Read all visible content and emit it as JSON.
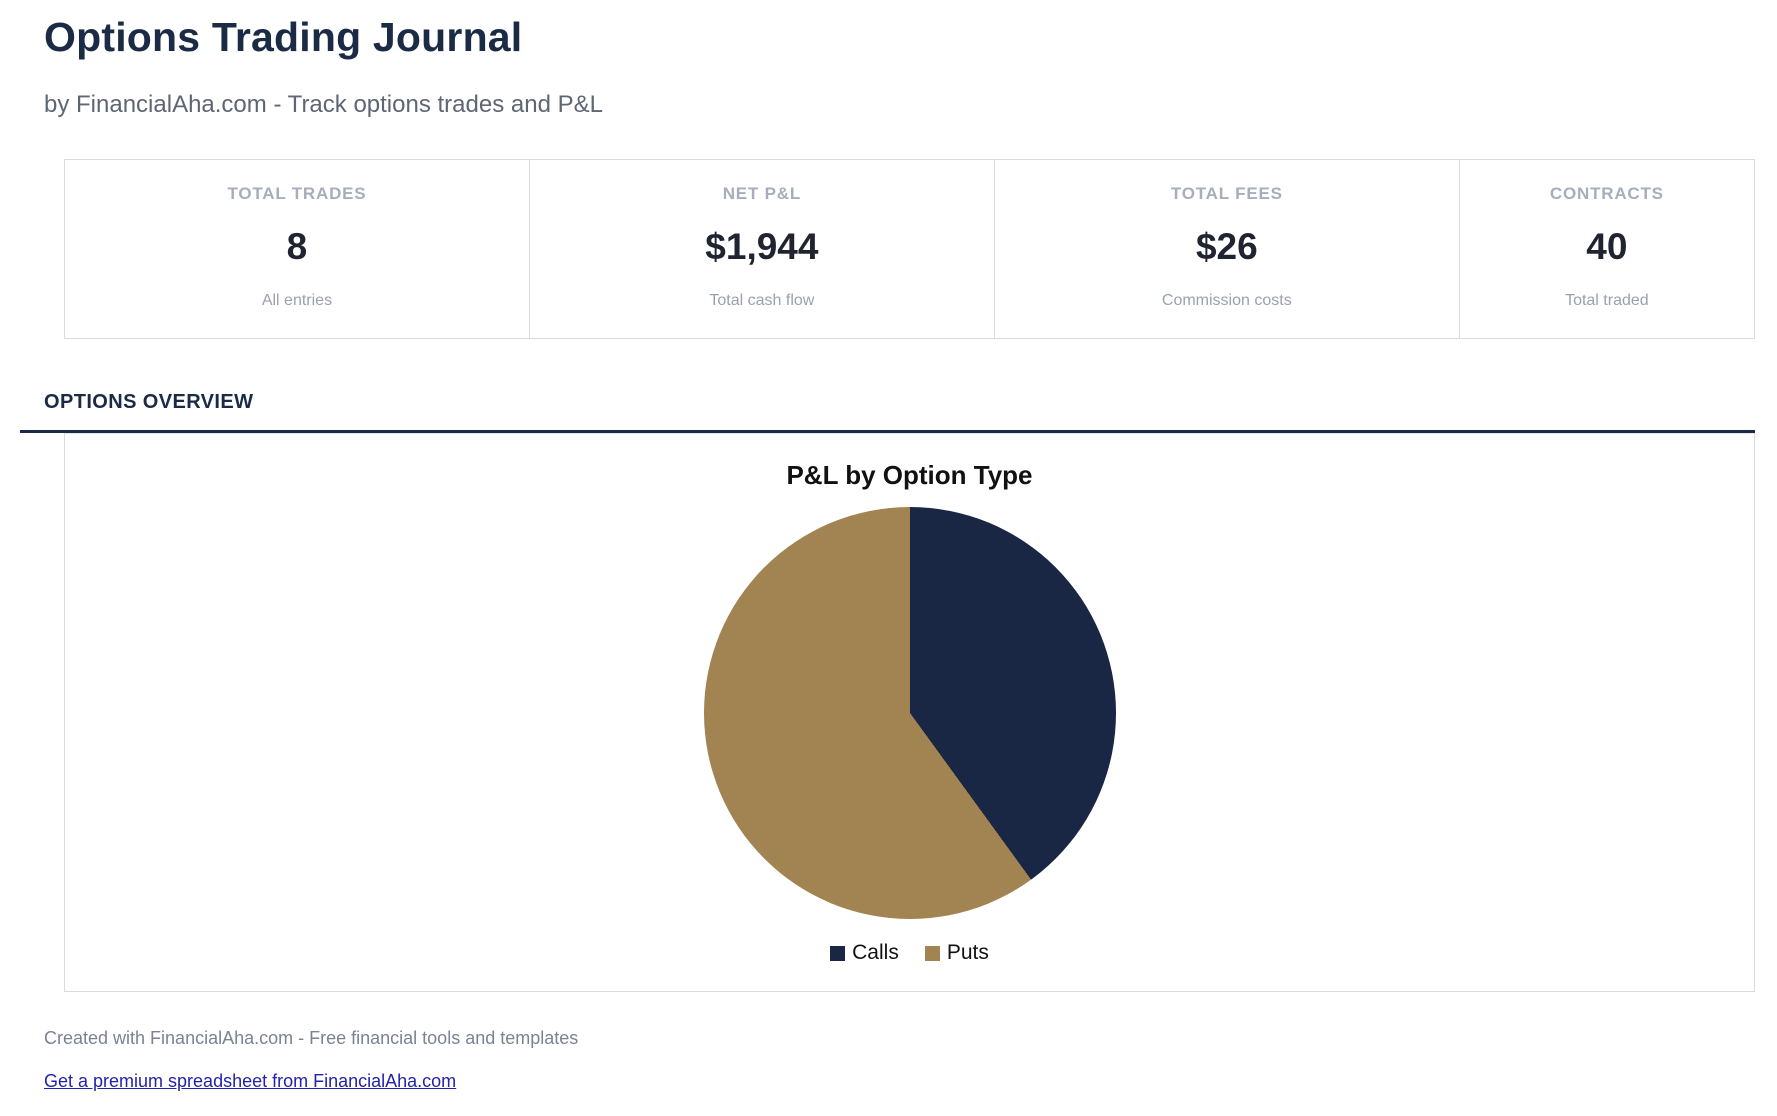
{
  "page": {
    "title": "Options Trading Journal",
    "subtitle": "by FinancialAha.com - Track options trades and P&L"
  },
  "stats": {
    "cards": [
      {
        "label": "TOTAL TRADES",
        "value": "8",
        "sublabel": "All entries"
      },
      {
        "label": "NET P&L",
        "value": "$1,944",
        "sublabel": "Total cash flow"
      },
      {
        "label": "TOTAL FEES",
        "value": "$26",
        "sublabel": "Commission costs"
      },
      {
        "label": "CONTRACTS",
        "value": "40",
        "sublabel": "Total traded"
      }
    ]
  },
  "section": {
    "heading": "OPTIONS OVERVIEW"
  },
  "chart_data": {
    "type": "pie",
    "title": "P&L by Option Type",
    "slices": [
      {
        "label": "Calls",
        "percent": 40,
        "color": "#1a2744"
      },
      {
        "label": "Puts",
        "percent": 60,
        "color": "#a28452"
      }
    ],
    "start_angle_deg": 0,
    "direction": "clockwise",
    "legend_position": "bottom"
  },
  "footer": {
    "created_text": "Created with FinancialAha.com - Free financial tools and templates",
    "link_text": "Get a premium spreadsheet from FinancialAha.com"
  },
  "colors": {
    "heading_navy": "#1b2a45",
    "accent_rule": "#1b2a45",
    "calls_navy": "#1a2744",
    "puts_tan": "#a28452",
    "link_blue": "#2323aa",
    "border_gray": "#d9dbe0",
    "muted_label": "#a6adbb",
    "muted_text": "#9aa1ae"
  }
}
